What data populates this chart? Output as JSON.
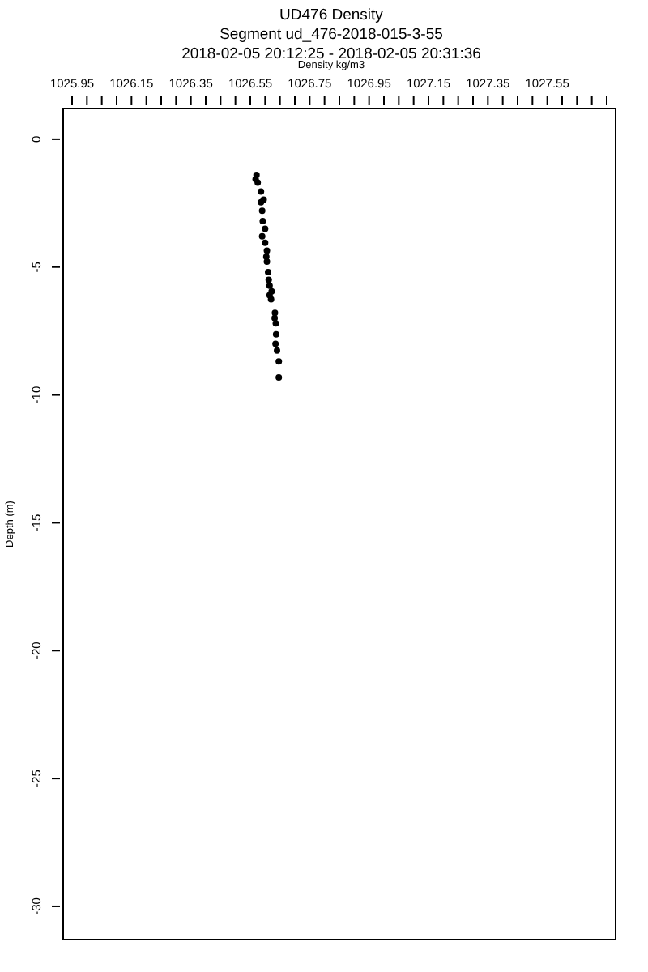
{
  "chart_data": {
    "type": "scatter",
    "title": "UD476 Density",
    "subtitle": "Segment ud_476-2018-015-3-55\n2018-02-05 20:12:25 - 2018-02-05 20:31:36",
    "xlabel": "Density kg/m3",
    "ylabel": "Depth (m)",
    "marker": "circle",
    "xlim": [
      1025.92,
      1027.78
    ],
    "ylim": [
      -31.3,
      1.2
    ],
    "xticks": [
      1025.95,
      {
        "value": 1026.0,
        "label": null
      },
      {
        "value": 1026.05,
        "label": null
      },
      {
        "value": 1026.1,
        "label": null
      },
      1026.15,
      {
        "value": 1026.2,
        "label": null
      },
      {
        "value": 1026.25,
        "label": null
      },
      {
        "value": 1026.3,
        "label": null
      },
      1026.35,
      {
        "value": 1026.4,
        "label": null
      },
      {
        "value": 1026.45,
        "label": null
      },
      {
        "value": 1026.5,
        "label": null
      },
      1026.55,
      {
        "value": 1026.6,
        "label": null
      },
      {
        "value": 1026.65,
        "label": null
      },
      {
        "value": 1026.7,
        "label": null
      },
      1026.75,
      {
        "value": 1026.8,
        "label": null
      },
      {
        "value": 1026.85,
        "label": null
      },
      {
        "value": 1026.9,
        "label": null
      },
      1026.95,
      {
        "value": 1027.0,
        "label": null
      },
      {
        "value": 1027.05,
        "label": null
      },
      {
        "value": 1027.1,
        "label": null
      },
      1027.15,
      {
        "value": 1027.2,
        "label": null
      },
      {
        "value": 1027.25,
        "label": null
      },
      {
        "value": 1027.3,
        "label": null
      },
      1027.35,
      {
        "value": 1027.4,
        "label": null
      },
      {
        "value": 1027.45,
        "label": null
      },
      {
        "value": 1027.5,
        "label": null
      },
      1027.55,
      {
        "value": 1027.6,
        "label": null
      },
      {
        "value": 1027.65,
        "label": null
      },
      {
        "value": 1027.7,
        "label": null
      },
      {
        "value": 1027.75,
        "label": null
      }
    ],
    "yticks": [
      0,
      -5,
      -10,
      -15,
      -20,
      -25,
      -30
    ],
    "series": [
      {
        "color": "#000000",
        "x": [
          1026.571,
          1026.568,
          1026.575,
          1026.586,
          1026.595,
          1026.586,
          1026.59,
          1026.592,
          1026.6,
          1026.59,
          1026.6,
          1026.606,
          1026.604,
          1026.606,
          1026.61,
          1026.612,
          1026.615,
          1026.622,
          1026.615,
          1026.62,
          1026.633,
          1026.632,
          1026.636,
          1026.637,
          1026.635,
          1026.64,
          1026.646,
          1026.646
        ],
        "values": [
          -1.4,
          -1.56,
          -1.7,
          -2.05,
          -2.36,
          -2.47,
          -2.8,
          -3.2,
          -3.5,
          -3.8,
          -4.05,
          -4.36,
          -4.6,
          -4.79,
          -5.2,
          -5.5,
          -5.73,
          -5.95,
          -6.1,
          -6.26,
          -6.79,
          -7.0,
          -7.2,
          -7.63,
          -8.0,
          -8.26,
          -8.69,
          -9.32
        ]
      }
    ]
  }
}
